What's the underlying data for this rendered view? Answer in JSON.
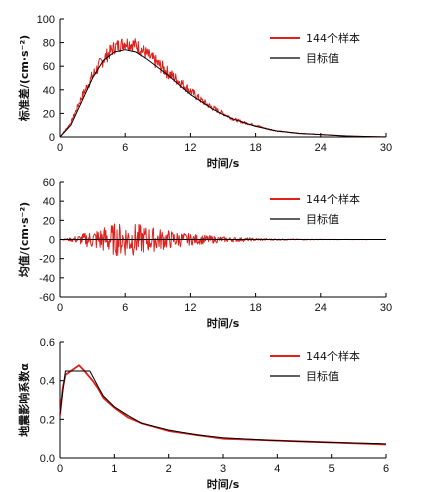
{
  "chart_data": [
    {
      "type": "line",
      "xlabel": "时间/s",
      "ylabel": "标准差/(cm·s⁻²)",
      "xlim": [
        0,
        30
      ],
      "ylim": [
        0,
        100
      ],
      "xticks": [
        0,
        6,
        12,
        18,
        24,
        30
      ],
      "yticks": [
        0,
        20,
        40,
        60,
        80,
        100
      ],
      "legend": "top-right",
      "series": [
        {
          "name": "144个样本",
          "color": "#e0201b",
          "x": [
            0,
            1,
            2,
            3,
            4,
            5,
            6,
            7,
            8,
            9,
            10,
            11,
            12,
            13,
            14,
            15,
            16,
            17,
            18,
            19,
            20,
            21,
            22,
            23,
            24,
            25,
            26,
            27,
            28,
            29,
            30
          ],
          "y": [
            0,
            12,
            34,
            52,
            66,
            76,
            80,
            78,
            70,
            62,
            54,
            47,
            39,
            31,
            25,
            20,
            15,
            12,
            10,
            7,
            5,
            4,
            3,
            2.5,
            2,
            1.5,
            1,
            0.6,
            0.4,
            0.2,
            0.1
          ],
          "noise": 6
        },
        {
          "name": "目标值",
          "color": "#000000",
          "x": [
            0,
            1,
            2,
            3,
            4,
            5,
            6,
            7,
            8,
            9,
            10,
            11,
            12,
            13,
            14,
            15,
            16,
            17,
            18,
            19,
            20,
            21,
            22,
            23,
            24,
            25,
            26,
            27,
            28,
            29,
            30
          ],
          "y": [
            0,
            10,
            30,
            50,
            65,
            72,
            74,
            72,
            66,
            59,
            52,
            44,
            36,
            30,
            24,
            19,
            15,
            12,
            9,
            7,
            5,
            4,
            3,
            2.5,
            2,
            1.5,
            1,
            0.6,
            0.4,
            0.2,
            0.1
          ]
        }
      ]
    },
    {
      "type": "line",
      "xlabel": "时间/s",
      "ylabel": "均值/(cm·s⁻²)",
      "xlim": [
        0,
        30
      ],
      "ylim": [
        -60,
        60
      ],
      "xticks": [
        0,
        6,
        12,
        18,
        24,
        30
      ],
      "yticks": [
        -60,
        -40,
        -20,
        0,
        20,
        40,
        60
      ],
      "legend": "top-right",
      "series": [
        {
          "name": "144个样本",
          "color": "#e0201b",
          "x": [
            0,
            1,
            2,
            3,
            4,
            5,
            6,
            7,
            8,
            9,
            10,
            11,
            12,
            13,
            14,
            15,
            16,
            17,
            18,
            19,
            20,
            21,
            22,
            23,
            24,
            25,
            26,
            27,
            28,
            29,
            30
          ],
          "amplitude": [
            0,
            2,
            6,
            10,
            14,
            17,
            18,
            17,
            14,
            12,
            10,
            8,
            6,
            5,
            4,
            3,
            2.5,
            2,
            1.5,
            1,
            0.8,
            0.6,
            0.5,
            0.4,
            0.3,
            0.2,
            0.1,
            0.1,
            0.1,
            0,
            0
          ]
        },
        {
          "name": "目标值",
          "color": "#000000",
          "x": [
            0,
            30
          ],
          "y": [
            0,
            0
          ]
        }
      ]
    },
    {
      "type": "line",
      "xlabel": "时间/s",
      "ylabel": "地震影响系数α",
      "xlim": [
        0,
        6
      ],
      "ylim": [
        0,
        0.6
      ],
      "xticks": [
        0,
        1,
        2,
        3,
        4,
        5,
        6
      ],
      "yticks": [
        0,
        0.2,
        0.4,
        0.6
      ],
      "legend": "top-right",
      "series": [
        {
          "name": "144个样本",
          "color": "#e0201b",
          "x": [
            0,
            0.05,
            0.1,
            0.2,
            0.3,
            0.35,
            0.45,
            0.6,
            0.7,
            0.8,
            1.0,
            1.25,
            1.5,
            2.0,
            2.5,
            3.0,
            3.5,
            4.0,
            4.5,
            5.0,
            5.5,
            6.0
          ],
          "y": [
            0.22,
            0.36,
            0.43,
            0.45,
            0.47,
            0.48,
            0.45,
            0.4,
            0.36,
            0.31,
            0.26,
            0.21,
            0.18,
            0.14,
            0.12,
            0.1,
            0.095,
            0.09,
            0.085,
            0.08,
            0.075,
            0.07
          ]
        },
        {
          "name": "目标值",
          "color": "#000000",
          "x": [
            0,
            0.1,
            0.3,
            0.35,
            0.55,
            0.7,
            0.8,
            1.0,
            1.25,
            1.5,
            2.0,
            2.5,
            3.0,
            3.5,
            4.0,
            4.5,
            5.0,
            5.5,
            6.0
          ],
          "y": [
            0.23,
            0.45,
            0.45,
            0.45,
            0.45,
            0.37,
            0.32,
            0.265,
            0.22,
            0.18,
            0.145,
            0.12,
            0.105,
            0.097,
            0.09,
            0.085,
            0.08,
            0.077,
            0.073
          ]
        }
      ]
    }
  ]
}
